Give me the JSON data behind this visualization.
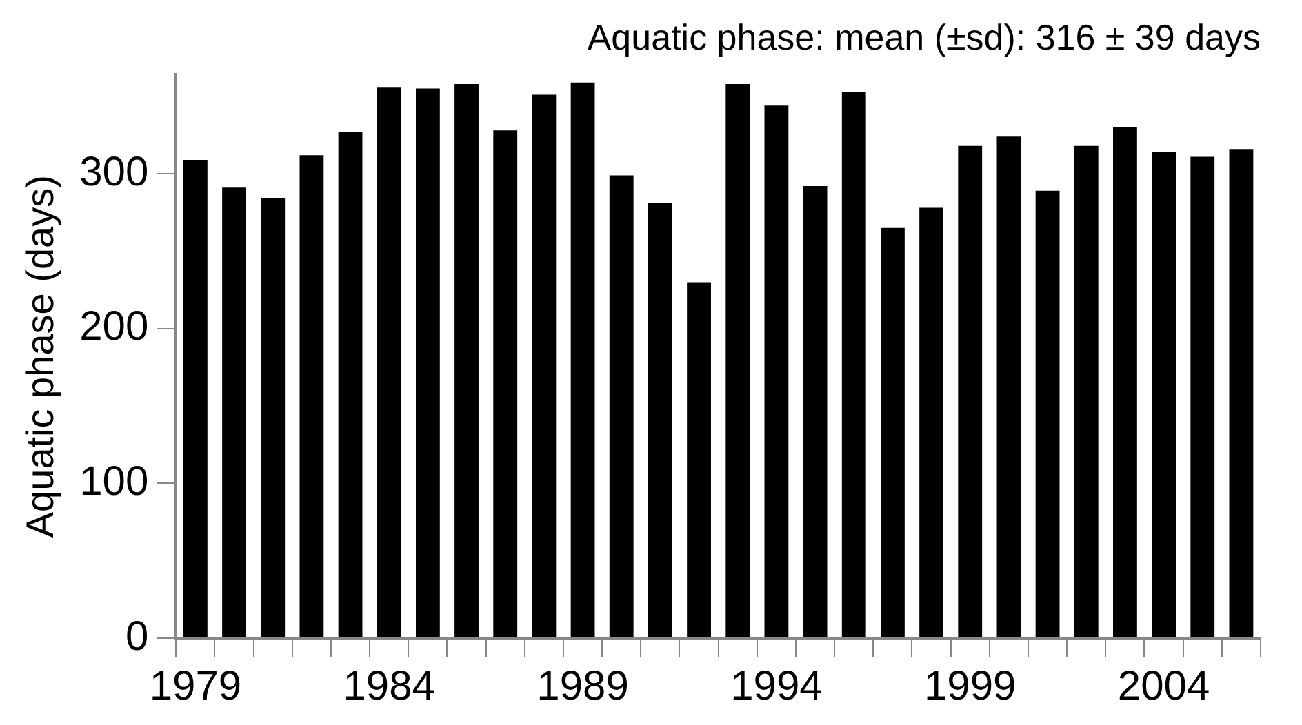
{
  "chart_data": {
    "type": "bar",
    "title": "Aquatic phase: mean (±sd): 316 ± 39 days",
    "ylabel": "Aquatic phase (days)",
    "categories": [
      "1979",
      null,
      null,
      null,
      null,
      "1984",
      null,
      null,
      null,
      null,
      "1989",
      null,
      null,
      null,
      null,
      "1994",
      null,
      null,
      null,
      null,
      "1999",
      null,
      null,
      null,
      null,
      "2004",
      null,
      null
    ],
    "values": [
      309,
      291,
      284,
      312,
      327,
      356,
      355,
      358,
      328,
      351,
      359,
      299,
      281,
      230,
      358,
      344,
      292,
      353,
      265,
      278,
      318,
      324,
      289,
      318,
      330,
      314,
      311,
      316
    ],
    "color": "#000000",
    "ylim": [
      0,
      364
    ],
    "yticks": [
      0,
      100,
      200,
      300
    ],
    "grid": false,
    "legend": false
  }
}
